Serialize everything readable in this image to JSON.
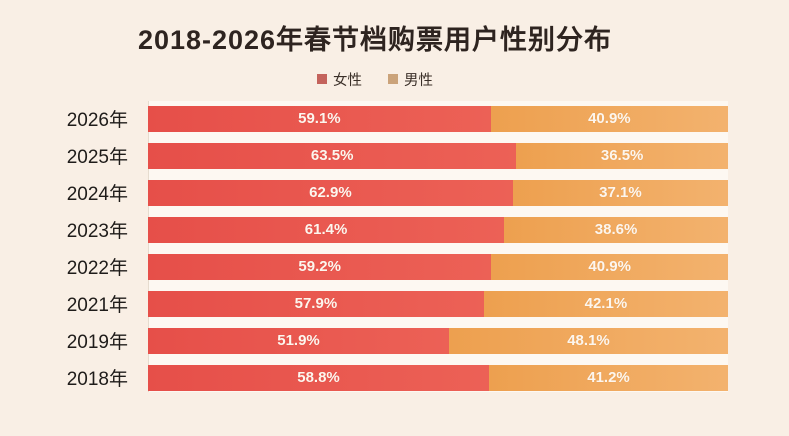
{
  "chart": {
    "title": "2018-2026年春节档购票用户性别分布",
    "legend": {
      "female": "女性",
      "male": "男性"
    }
  },
  "colors": {
    "page_background": "#f9efe5",
    "plot_background": "#fdf8f2",
    "female_bar": "#e8554e",
    "male_bar": "#efa159",
    "legend_female_swatch": "#c4635c",
    "legend_male_swatch": "#cba37a",
    "title_text": "#2e2420",
    "value_text": "#ffffff"
  },
  "chart_data": {
    "type": "bar",
    "orientation": "horizontal-stacked",
    "title": "2018-2026年春节档购票用户性别分布",
    "xlabel": "",
    "ylabel": "",
    "xlim": [
      0,
      100
    ],
    "grid": false,
    "legend_position": "top-center",
    "categories": [
      "2026年",
      "2025年",
      "2024年",
      "2023年",
      "2022年",
      "2021年",
      "2019年",
      "2018年"
    ],
    "series": [
      {
        "name": "女性",
        "color": "#e8554e",
        "values": [
          59.1,
          63.5,
          62.9,
          61.4,
          59.2,
          57.9,
          51.9,
          58.8
        ]
      },
      {
        "name": "男性",
        "color": "#efa159",
        "values": [
          40.9,
          36.5,
          37.1,
          38.6,
          40.9,
          42.1,
          48.1,
          41.2
        ]
      }
    ],
    "rows": [
      {
        "year": "2026年",
        "female": 59.1,
        "female_label": "59.1%",
        "male_label": "40.9%"
      },
      {
        "year": "2025年",
        "female": 63.5,
        "female_label": "63.5%",
        "male_label": "36.5%"
      },
      {
        "year": "2024年",
        "female": 62.9,
        "female_label": "62.9%",
        "male_label": "37.1%"
      },
      {
        "year": "2023年",
        "female": 61.4,
        "female_label": "61.4%",
        "male_label": "38.6%"
      },
      {
        "year": "2022年",
        "female": 59.2,
        "female_label": "59.2%",
        "male_label": "40.9%"
      },
      {
        "year": "2021年",
        "female": 57.9,
        "female_label": "57.9%",
        "male_label": "42.1%"
      },
      {
        "year": "2019年",
        "female": 51.9,
        "female_label": "51.9%",
        "male_label": "48.1%"
      },
      {
        "year": "2018年",
        "female": 58.8,
        "female_label": "58.8%",
        "male_label": "41.2%"
      }
    ]
  }
}
